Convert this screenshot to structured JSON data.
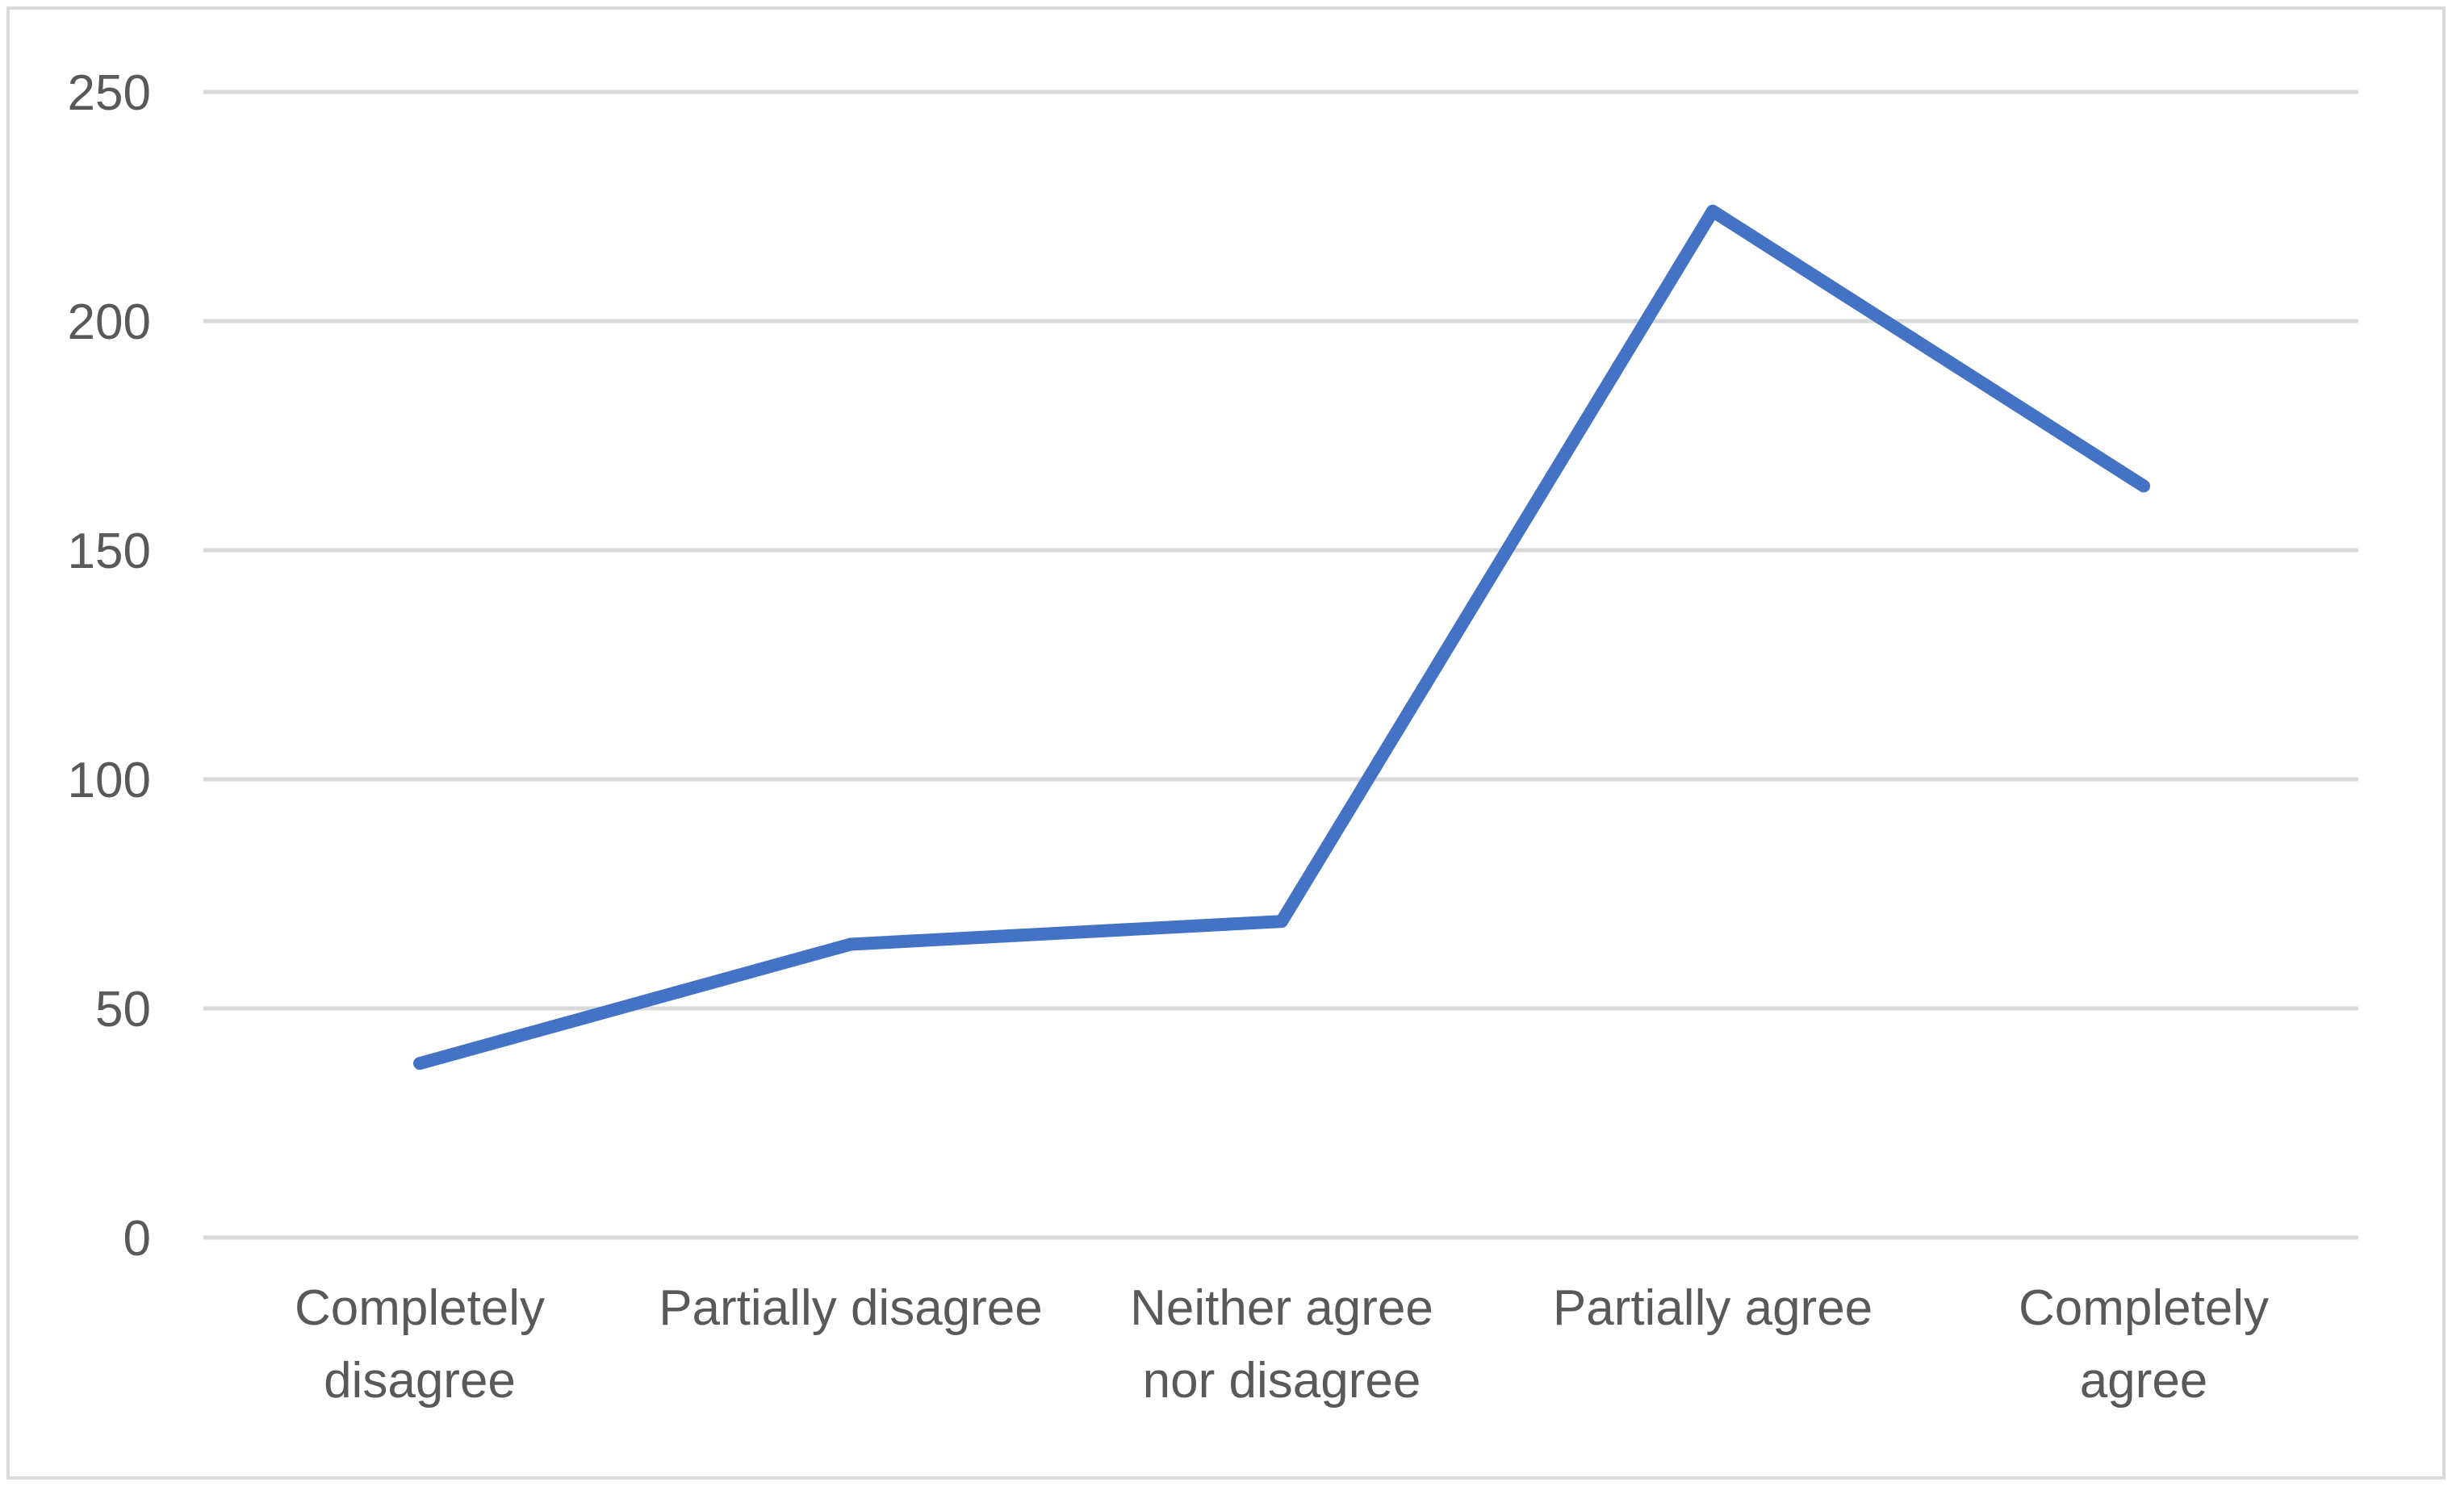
{
  "chart_data": {
    "type": "line",
    "title": "",
    "xlabel": "",
    "ylabel": "",
    "categories": [
      [
        "Completely",
        "disagree"
      ],
      [
        "Partially disagree"
      ],
      [
        "Neither agree",
        "nor disagree"
      ],
      [
        "Partially agree"
      ],
      [
        "Completely",
        "agree"
      ]
    ],
    "series": [
      {
        "values": [
          38,
          64,
          69,
          224,
          164
        ],
        "color": "#4472c4"
      }
    ],
    "ylim": [
      0,
      250
    ],
    "yticks": [
      0,
      50,
      100,
      150,
      200,
      250
    ],
    "grid": true,
    "legend": "none"
  }
}
